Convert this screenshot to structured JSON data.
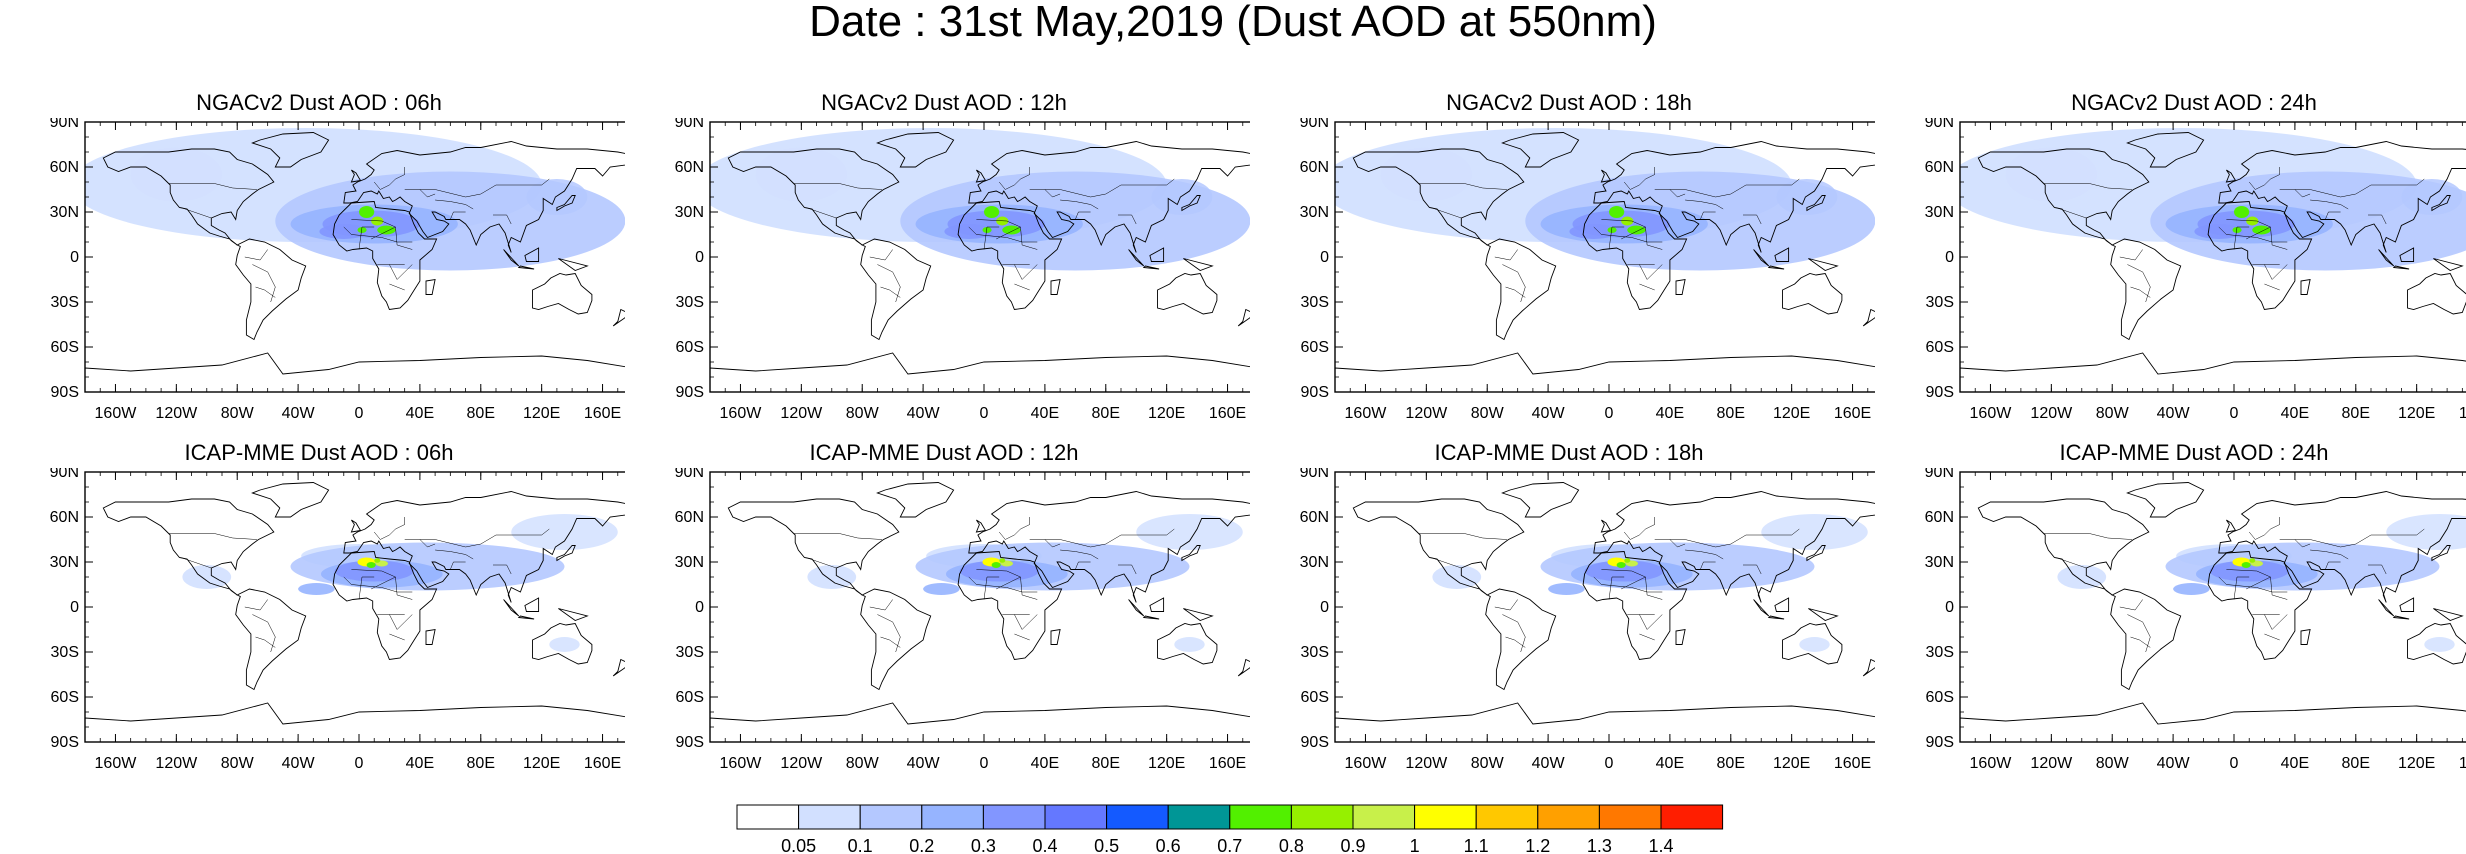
{
  "title": "Date : 31st May,2019 (Dust AOD at 550nm)",
  "lat_ticks": [
    "90N",
    "60N",
    "30N",
    "0",
    "30S",
    "60S",
    "90S"
  ],
  "lon_ticks": [
    "160W",
    "120W",
    "80W",
    "40W",
    "0",
    "40E",
    "80E",
    "120E",
    "160E"
  ],
  "panels": [
    {
      "title": "NGACv2 Dust AOD : 06h",
      "model": "ngac",
      "peak": 0.9
    },
    {
      "title": "NGACv2 Dust AOD : 12h",
      "model": "ngac",
      "peak": 0.9
    },
    {
      "title": "NGACv2 Dust AOD : 18h",
      "model": "ngac",
      "peak": 0.9
    },
    {
      "title": "NGACv2 Dust AOD : 24h",
      "model": "ngac",
      "peak": 0.9
    },
    {
      "title": "ICAP-MME Dust AOD : 06h",
      "model": "icap",
      "peak": 1.1
    },
    {
      "title": "ICAP-MME Dust AOD : 12h",
      "model": "icap",
      "peak": 1.1
    },
    {
      "title": "ICAP-MME Dust AOD : 18h",
      "model": "icap",
      "peak": 1.1
    },
    {
      "title": "ICAP-MME Dust AOD : 24h",
      "model": "icap",
      "peak": 1.1
    }
  ],
  "colorbar": {
    "labels": [
      "0.05",
      "0.1",
      "0.2",
      "0.3",
      "0.4",
      "0.5",
      "0.6",
      "0.7",
      "0.8",
      "0.9",
      "1",
      "1.1",
      "1.2",
      "1.3",
      "1.4"
    ],
    "colors": [
      "#ffffff",
      "#d2e0ff",
      "#b4c8ff",
      "#96b4ff",
      "#8296ff",
      "#6478ff",
      "#145aff",
      "#009696",
      "#52f000",
      "#96f000",
      "#c8f04a",
      "#ffff00",
      "#ffc800",
      "#ffa000",
      "#ff7800",
      "#ff1e00"
    ]
  }
}
